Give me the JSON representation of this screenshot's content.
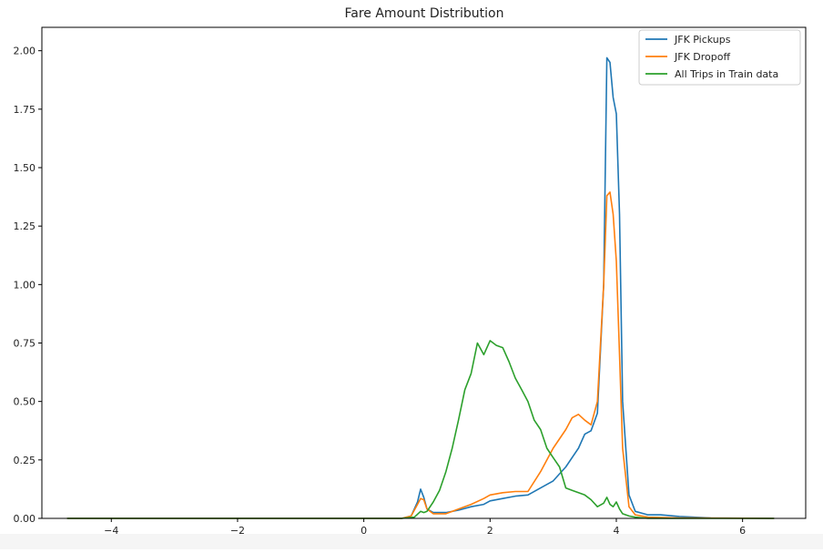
{
  "chart_data": {
    "type": "line",
    "title": "Fare Amount Distribution",
    "xlabel": "",
    "ylabel": "",
    "xlim": [
      -5.1,
      7.0
    ],
    "ylim": [
      0,
      2.1
    ],
    "x_ticks": [
      -4,
      -2,
      0,
      2,
      4,
      6
    ],
    "x_tick_labels": [
      "−4",
      "−2",
      "0",
      "2",
      "4",
      "6"
    ],
    "y_ticks": [
      0,
      0.25,
      0.5,
      0.75,
      1.0,
      1.25,
      1.5,
      1.75,
      2.0
    ],
    "y_tick_labels": [
      "0.00",
      "0.25",
      "0.50",
      "0.75",
      "1.00",
      "1.25",
      "1.50",
      "1.75",
      "2.00"
    ],
    "grid": false,
    "legend_position": "top-right",
    "series": [
      {
        "name": "JFK Pickups",
        "color": "#1f77b4",
        "points": [
          [
            -4.7,
            0
          ],
          [
            0.6,
            0
          ],
          [
            0.75,
            0.01
          ],
          [
            0.85,
            0.07
          ],
          [
            0.9,
            0.125
          ],
          [
            0.95,
            0.09
          ],
          [
            1.0,
            0.04
          ],
          [
            1.1,
            0.025
          ],
          [
            1.3,
            0.025
          ],
          [
            1.5,
            0.035
          ],
          [
            1.7,
            0.05
          ],
          [
            1.9,
            0.06
          ],
          [
            2.0,
            0.075
          ],
          [
            2.2,
            0.085
          ],
          [
            2.4,
            0.095
          ],
          [
            2.6,
            0.1
          ],
          [
            2.8,
            0.13
          ],
          [
            3.0,
            0.16
          ],
          [
            3.2,
            0.22
          ],
          [
            3.4,
            0.3
          ],
          [
            3.5,
            0.36
          ],
          [
            3.6,
            0.375
          ],
          [
            3.7,
            0.45
          ],
          [
            3.8,
            1.0
          ],
          [
            3.85,
            1.97
          ],
          [
            3.9,
            1.95
          ],
          [
            3.95,
            1.8
          ],
          [
            4.0,
            1.73
          ],
          [
            4.05,
            1.3
          ],
          [
            4.1,
            0.5
          ],
          [
            4.2,
            0.1
          ],
          [
            4.3,
            0.03
          ],
          [
            4.5,
            0.015
          ],
          [
            4.7,
            0.015
          ],
          [
            5.0,
            0.008
          ],
          [
            5.5,
            0.002
          ],
          [
            6.5,
            0
          ]
        ]
      },
      {
        "name": "JFK Dropoff",
        "color": "#ff7f0e",
        "points": [
          [
            -4.7,
            0
          ],
          [
            0.6,
            0
          ],
          [
            0.75,
            0.01
          ],
          [
            0.85,
            0.06
          ],
          [
            0.9,
            0.085
          ],
          [
            0.95,
            0.08
          ],
          [
            1.0,
            0.04
          ],
          [
            1.1,
            0.02
          ],
          [
            1.3,
            0.02
          ],
          [
            1.5,
            0.04
          ],
          [
            1.7,
            0.06
          ],
          [
            1.9,
            0.085
          ],
          [
            2.0,
            0.1
          ],
          [
            2.2,
            0.11
          ],
          [
            2.4,
            0.115
          ],
          [
            2.6,
            0.115
          ],
          [
            2.8,
            0.2
          ],
          [
            3.0,
            0.3
          ],
          [
            3.2,
            0.38
          ],
          [
            3.3,
            0.43
          ],
          [
            3.4,
            0.445
          ],
          [
            3.5,
            0.42
          ],
          [
            3.6,
            0.4
          ],
          [
            3.7,
            0.5
          ],
          [
            3.8,
            1.0
          ],
          [
            3.85,
            1.38
          ],
          [
            3.9,
            1.395
          ],
          [
            3.95,
            1.3
          ],
          [
            4.0,
            1.1
          ],
          [
            4.05,
            0.7
          ],
          [
            4.1,
            0.3
          ],
          [
            4.2,
            0.05
          ],
          [
            4.3,
            0.015
          ],
          [
            4.5,
            0.005
          ],
          [
            5.0,
            0.002
          ],
          [
            6.5,
            0
          ]
        ]
      },
      {
        "name": "All Trips in Train data",
        "color": "#2ca02c",
        "points": [
          [
            -4.7,
            0
          ],
          [
            0.6,
            0
          ],
          [
            0.8,
            0.005
          ],
          [
            0.9,
            0.03
          ],
          [
            0.95,
            0.025
          ],
          [
            1.0,
            0.03
          ],
          [
            1.1,
            0.07
          ],
          [
            1.2,
            0.12
          ],
          [
            1.3,
            0.2
          ],
          [
            1.4,
            0.3
          ],
          [
            1.5,
            0.42
          ],
          [
            1.6,
            0.55
          ],
          [
            1.7,
            0.62
          ],
          [
            1.8,
            0.75
          ],
          [
            1.9,
            0.7
          ],
          [
            2.0,
            0.76
          ],
          [
            2.1,
            0.74
          ],
          [
            2.2,
            0.73
          ],
          [
            2.3,
            0.67
          ],
          [
            2.4,
            0.6
          ],
          [
            2.5,
            0.55
          ],
          [
            2.6,
            0.5
          ],
          [
            2.7,
            0.42
          ],
          [
            2.8,
            0.38
          ],
          [
            2.9,
            0.3
          ],
          [
            3.0,
            0.26
          ],
          [
            3.1,
            0.22
          ],
          [
            3.2,
            0.13
          ],
          [
            3.3,
            0.12
          ],
          [
            3.4,
            0.11
          ],
          [
            3.5,
            0.1
          ],
          [
            3.6,
            0.08
          ],
          [
            3.7,
            0.05
          ],
          [
            3.8,
            0.065
          ],
          [
            3.85,
            0.09
          ],
          [
            3.9,
            0.06
          ],
          [
            3.95,
            0.05
          ],
          [
            4.0,
            0.07
          ],
          [
            4.05,
            0.04
          ],
          [
            4.1,
            0.02
          ],
          [
            4.2,
            0.01
          ],
          [
            4.3,
            0.005
          ],
          [
            4.5,
            0
          ],
          [
            6.5,
            0
          ]
        ]
      }
    ]
  }
}
